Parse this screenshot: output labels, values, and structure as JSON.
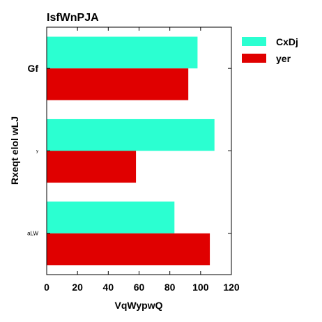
{
  "chart_data": {
    "type": "bar",
    "orientation": "horizontal",
    "title": "IsfWnPJA",
    "xlabel": "VqWypwQ",
    "ylabel": "Rxeqt elol wLJ",
    "xlim": [
      0,
      120
    ],
    "xticks": [
      0,
      20,
      40,
      60,
      80,
      100,
      120
    ],
    "categories": [
      "Gf",
      "y",
      "aLW"
    ],
    "category_label_sizes": [
      "large",
      "tiny",
      "small"
    ],
    "series": [
      {
        "name": "CxDj",
        "color": "#2bffd1",
        "values": [
          98,
          109,
          83
        ]
      },
      {
        "name": "yer",
        "color": "#e00000",
        "values": [
          92,
          58,
          106
        ]
      }
    ],
    "legend_position": "right",
    "grid": false
  }
}
